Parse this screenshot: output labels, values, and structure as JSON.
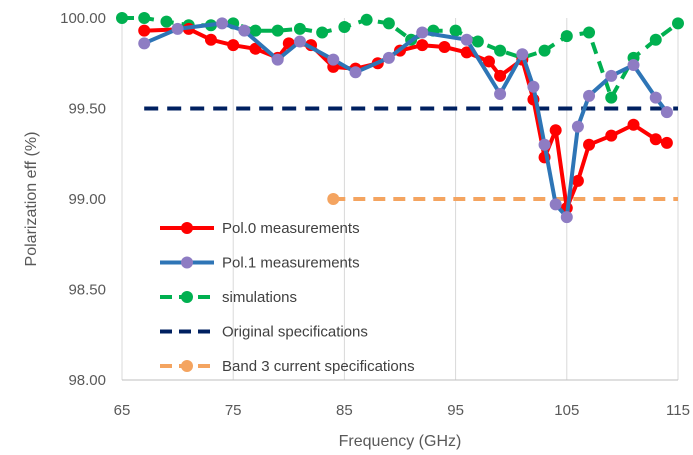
{
  "chart_data": {
    "type": "line",
    "title": "",
    "xlabel": "Frequency (GHz)",
    "ylabel": "Polarization eff (%)",
    "xlim": [
      65,
      115
    ],
    "ylim": [
      98.0,
      100.0
    ],
    "x_ticks": [
      65,
      75,
      85,
      95,
      105,
      115
    ],
    "y_ticks": [
      98.0,
      98.5,
      99.0,
      99.5,
      100.0
    ],
    "x_tick_labels": [
      "65",
      "75",
      "85",
      "95",
      "105",
      "115"
    ],
    "y_tick_labels": [
      "98.00",
      "98.50",
      "99.00",
      "99.50",
      "100.00"
    ],
    "grid": "vertical",
    "legend_position": "bottom-left inside plot",
    "series": [
      {
        "name": "Pol.0 measurements",
        "color": "#FF0000",
        "style": "solid-markers",
        "x": [
          67,
          71,
          73,
          75,
          77,
          79,
          80,
          82,
          84,
          86,
          88,
          90,
          92,
          94,
          96,
          98,
          99,
          101,
          102,
          103,
          104,
          105,
          106,
          107,
          109,
          111,
          113,
          114
        ],
        "y": [
          99.93,
          99.94,
          99.88,
          99.85,
          99.83,
          99.78,
          99.86,
          99.85,
          99.73,
          99.72,
          99.75,
          99.82,
          99.85,
          99.84,
          99.81,
          99.76,
          99.68,
          99.77,
          99.55,
          99.23,
          99.38,
          98.95,
          99.1,
          99.3,
          99.35,
          99.41,
          99.33,
          99.31
        ]
      },
      {
        "name": "Pol.1 measurements",
        "color": "#2E75B6",
        "marker_color": "#8E7CC3",
        "style": "solid-markers",
        "x": [
          67,
          70,
          74,
          76,
          79,
          81,
          84,
          86,
          89,
          92,
          96,
          99,
          101,
          102,
          103,
          104,
          105,
          106,
          107,
          109,
          111,
          113,
          114
        ],
        "y": [
          99.86,
          99.94,
          99.97,
          99.93,
          99.77,
          99.87,
          99.77,
          99.7,
          99.78,
          99.92,
          99.88,
          99.58,
          99.8,
          99.62,
          99.3,
          98.97,
          98.9,
          99.4,
          99.57,
          99.68,
          99.74,
          99.56,
          99.48
        ]
      },
      {
        "name": "simulations",
        "color": "#00B050",
        "style": "dashed-markers",
        "x": [
          65,
          67,
          69,
          71,
          73,
          75,
          77,
          79,
          81,
          83,
          85,
          87,
          89,
          91,
          93,
          95,
          97,
          99,
          101,
          103,
          105,
          107,
          109,
          111,
          113,
          115
        ],
        "y": [
          100.0,
          100.0,
          99.98,
          99.96,
          99.96,
          99.97,
          99.93,
          99.93,
          99.94,
          99.92,
          99.95,
          99.99,
          99.97,
          99.88,
          99.93,
          99.93,
          99.87,
          99.82,
          99.78,
          99.82,
          99.9,
          99.92,
          99.56,
          99.78,
          99.88,
          99.97
        ]
      },
      {
        "name": "Original specifications",
        "color": "#002060",
        "style": "dashed",
        "x": [
          67,
          115
        ],
        "y": [
          99.5,
          99.5
        ]
      },
      {
        "name": "Band 3 current specifications",
        "color": "#F4A460",
        "style": "dashed-markers",
        "x": [
          84,
          115
        ],
        "y": [
          99.0,
          99.0
        ]
      }
    ]
  }
}
